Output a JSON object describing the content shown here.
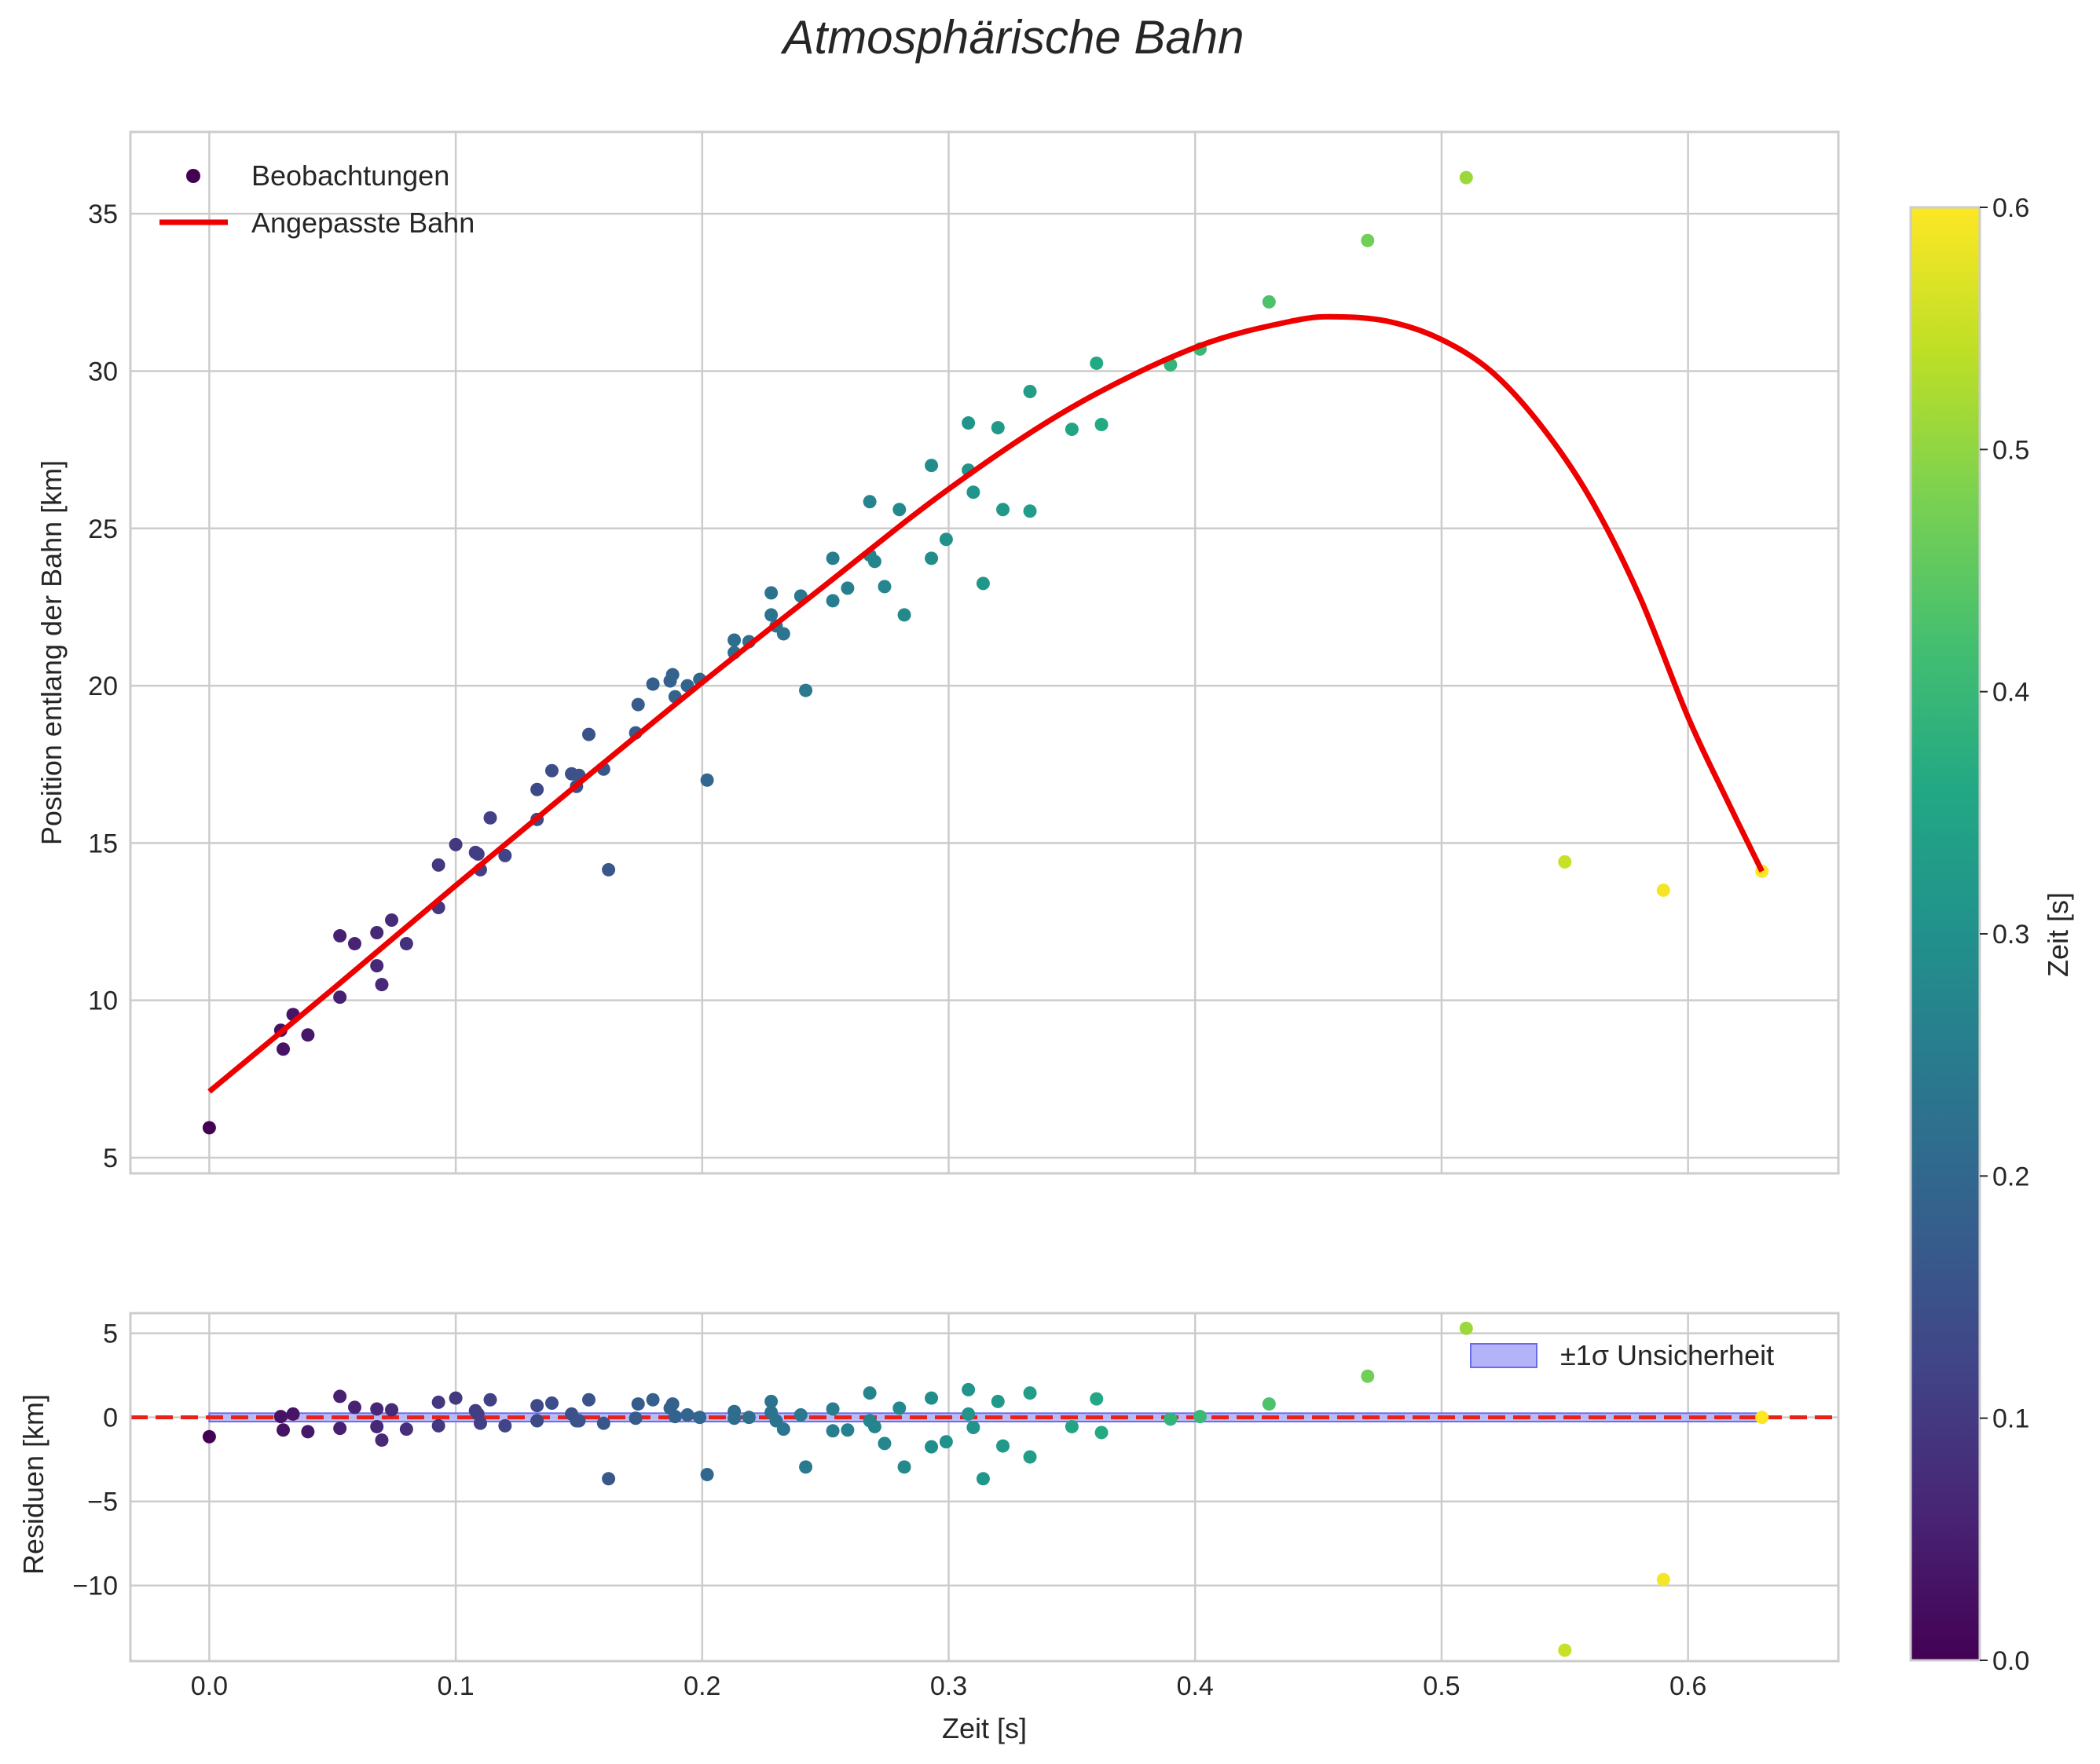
{
  "chart_data": {
    "type": "scatter",
    "title": "Atmosphärische Bahn",
    "colors": {
      "fit_line": "#ee0000",
      "zero_line": "#e8221a",
      "band_fill": "#b3b3f7",
      "band_edge": "#6b6bf0",
      "grid": "#cccccc",
      "frame": "#cccccc"
    },
    "top_panel": {
      "ylabel": "Position entlang der Bahn [km]",
      "ylim": [
        4.5,
        37.6
      ],
      "xlim": [
        -0.032,
        0.661
      ],
      "yticks": [
        5,
        10,
        15,
        20,
        25,
        30,
        35
      ],
      "legend": {
        "location": "top-left",
        "scatter_label": "Beobachtungen",
        "line_label": "Angepasste Bahn"
      },
      "fit_curve": {
        "t": [
          0.0,
          0.05,
          0.1,
          0.15,
          0.2,
          0.25,
          0.3,
          0.35,
          0.4,
          0.44,
          0.46,
          0.48,
          0.5,
          0.52,
          0.54,
          0.56,
          0.58,
          0.6,
          0.615,
          0.63
        ],
        "y": [
          7.1,
          10.35,
          13.65,
          16.9,
          20.1,
          23.2,
          26.25,
          28.85,
          30.75,
          31.6,
          31.72,
          31.55,
          31.0,
          30.0,
          28.3,
          26.0,
          22.9,
          19.0,
          16.5,
          14.1
        ]
      }
    },
    "bottom_panel": {
      "ylabel": "Residuen [km]",
      "xlabel": "Zeit [s]",
      "ylim": [
        -14.5,
        6.2
      ],
      "yticks": [
        5,
        0,
        -5,
        -10
      ],
      "ytick_labels": [
        "5",
        "0",
        "−5",
        "−10"
      ],
      "xticks": [
        0.0,
        0.1,
        0.2,
        0.3,
        0.4,
        0.5,
        0.6
      ],
      "xtick_labels": [
        "0.0",
        "0.1",
        "0.2",
        "0.3",
        "0.4",
        "0.5",
        "0.6"
      ],
      "legend": {
        "location": "top-right",
        "band_label": "±1σ Unsicherheit"
      },
      "band_halfwidth": 0.25,
      "band_t_range": [
        0.0,
        0.63
      ]
    },
    "colorbar": {
      "label": "Zeit [s]",
      "range": [
        0.0,
        0.6
      ],
      "ticks": [
        0.0,
        0.1,
        0.2,
        0.3,
        0.4,
        0.5,
        0.6
      ],
      "tick_labels": [
        "0.0",
        "0.1",
        "0.2",
        "0.3",
        "0.4",
        "0.5",
        "0.6"
      ]
    },
    "observations": [
      {
        "t": 0.0,
        "y": 5.95,
        "r": -1.15
      },
      {
        "t": 0.029,
        "y": 9.05,
        "r": 0.05
      },
      {
        "t": 0.03,
        "y": 8.45,
        "r": -0.75
      },
      {
        "t": 0.034,
        "y": 9.55,
        "r": 0.2
      },
      {
        "t": 0.04,
        "y": 8.9,
        "r": -0.85
      },
      {
        "t": 0.053,
        "y": 12.05,
        "r": 1.25
      },
      {
        "t": 0.053,
        "y": 10.1,
        "r": -0.65
      },
      {
        "t": 0.059,
        "y": 11.8,
        "r": 0.6
      },
      {
        "t": 0.068,
        "y": 12.15,
        "r": 0.5
      },
      {
        "t": 0.068,
        "y": 11.1,
        "r": -0.55
      },
      {
        "t": 0.07,
        "y": 10.5,
        "r": -1.35
      },
      {
        "t": 0.074,
        "y": 12.55,
        "r": 0.45
      },
      {
        "t": 0.08,
        "y": 11.8,
        "r": -0.7
      },
      {
        "t": 0.093,
        "y": 14.3,
        "r": 0.9
      },
      {
        "t": 0.093,
        "y": 12.95,
        "r": -0.5
      },
      {
        "t": 0.1,
        "y": 14.95,
        "r": 1.15
      },
      {
        "t": 0.108,
        "y": 14.7,
        "r": 0.4
      },
      {
        "t": 0.109,
        "y": 14.65,
        "r": 0.2
      },
      {
        "t": 0.11,
        "y": 14.15,
        "r": -0.35
      },
      {
        "t": 0.114,
        "y": 15.8,
        "r": 1.05
      },
      {
        "t": 0.12,
        "y": 14.6,
        "r": -0.5
      },
      {
        "t": 0.133,
        "y": 16.7,
        "r": 0.7
      },
      {
        "t": 0.133,
        "y": 15.75,
        "r": -0.2
      },
      {
        "t": 0.139,
        "y": 17.3,
        "r": 0.85
      },
      {
        "t": 0.147,
        "y": 17.2,
        "r": 0.2
      },
      {
        "t": 0.149,
        "y": 16.8,
        "r": -0.2
      },
      {
        "t": 0.15,
        "y": 17.15,
        "r": -0.2
      },
      {
        "t": 0.154,
        "y": 18.45,
        "r": 1.05
      },
      {
        "t": 0.16,
        "y": 17.35,
        "r": -0.35
      },
      {
        "t": 0.162,
        "y": 14.15,
        "r": -3.65
      },
      {
        "t": 0.173,
        "y": 18.5,
        "r": -0.05
      },
      {
        "t": 0.174,
        "y": 19.4,
        "r": 0.8
      },
      {
        "t": 0.18,
        "y": 20.05,
        "r": 1.05
      },
      {
        "t": 0.187,
        "y": 20.15,
        "r": 0.55
      },
      {
        "t": 0.188,
        "y": 20.35,
        "r": 0.8
      },
      {
        "t": 0.189,
        "y": 19.65,
        "r": 0.05
      },
      {
        "t": 0.194,
        "y": 20.0,
        "r": 0.15
      },
      {
        "t": 0.199,
        "y": 20.2,
        "r": 0.0
      },
      {
        "t": 0.202,
        "y": 17.0,
        "r": -3.4
      },
      {
        "t": 0.213,
        "y": 21.45,
        "r": 0.35
      },
      {
        "t": 0.213,
        "y": 21.05,
        "r": -0.05
      },
      {
        "t": 0.219,
        "y": 21.4,
        "r": 0.0
      },
      {
        "t": 0.228,
        "y": 22.95,
        "r": 0.95
      },
      {
        "t": 0.228,
        "y": 22.25,
        "r": 0.3
      },
      {
        "t": 0.23,
        "y": 21.9,
        "r": -0.2
      },
      {
        "t": 0.233,
        "y": 21.65,
        "r": -0.7
      },
      {
        "t": 0.24,
        "y": 22.85,
        "r": 0.15
      },
      {
        "t": 0.242,
        "y": 19.85,
        "r": -2.95
      },
      {
        "t": 0.253,
        "y": 24.05,
        "r": 0.5
      },
      {
        "t": 0.253,
        "y": 22.7,
        "r": -0.8
      },
      {
        "t": 0.259,
        "y": 23.1,
        "r": -0.75
      },
      {
        "t": 0.268,
        "y": 25.85,
        "r": 1.45
      },
      {
        "t": 0.268,
        "y": 24.15,
        "r": -0.2
      },
      {
        "t": 0.27,
        "y": 23.95,
        "r": -0.55
      },
      {
        "t": 0.274,
        "y": 23.15,
        "r": -1.55
      },
      {
        "t": 0.28,
        "y": 25.6,
        "r": 0.55
      },
      {
        "t": 0.282,
        "y": 22.25,
        "r": -2.95
      },
      {
        "t": 0.293,
        "y": 27.0,
        "r": 1.15
      },
      {
        "t": 0.293,
        "y": 24.05,
        "r": -1.75
      },
      {
        "t": 0.299,
        "y": 24.65,
        "r": -1.45
      },
      {
        "t": 0.308,
        "y": 28.35,
        "r": 1.65
      },
      {
        "t": 0.308,
        "y": 26.85,
        "r": 0.2
      },
      {
        "t": 0.31,
        "y": 26.15,
        "r": -0.6
      },
      {
        "t": 0.314,
        "y": 23.25,
        "r": -3.65
      },
      {
        "t": 0.32,
        "y": 28.2,
        "r": 0.95
      },
      {
        "t": 0.322,
        "y": 25.6,
        "r": -1.7
      },
      {
        "t": 0.333,
        "y": 29.35,
        "r": 1.45
      },
      {
        "t": 0.333,
        "y": 25.55,
        "r": -2.35
      },
      {
        "t": 0.35,
        "y": 28.15,
        "r": -0.55
      },
      {
        "t": 0.36,
        "y": 30.25,
        "r": 1.1
      },
      {
        "t": 0.362,
        "y": 28.3,
        "r": -0.9
      },
      {
        "t": 0.39,
        "y": 30.2,
        "r": -0.1
      },
      {
        "t": 0.402,
        "y": 30.7,
        "r": 0.05
      },
      {
        "t": 0.43,
        "y": 32.2,
        "r": 0.8
      },
      {
        "t": 0.47,
        "y": 34.15,
        "r": 2.45
      },
      {
        "t": 0.51,
        "y": 36.15,
        "r": 5.3
      },
      {
        "t": 0.55,
        "y": 14.4,
        "r": -13.85
      },
      {
        "t": 0.59,
        "y": 13.5,
        "r": -9.65
      },
      {
        "t": 0.63,
        "y": 14.1,
        "r": 0.0
      }
    ]
  }
}
